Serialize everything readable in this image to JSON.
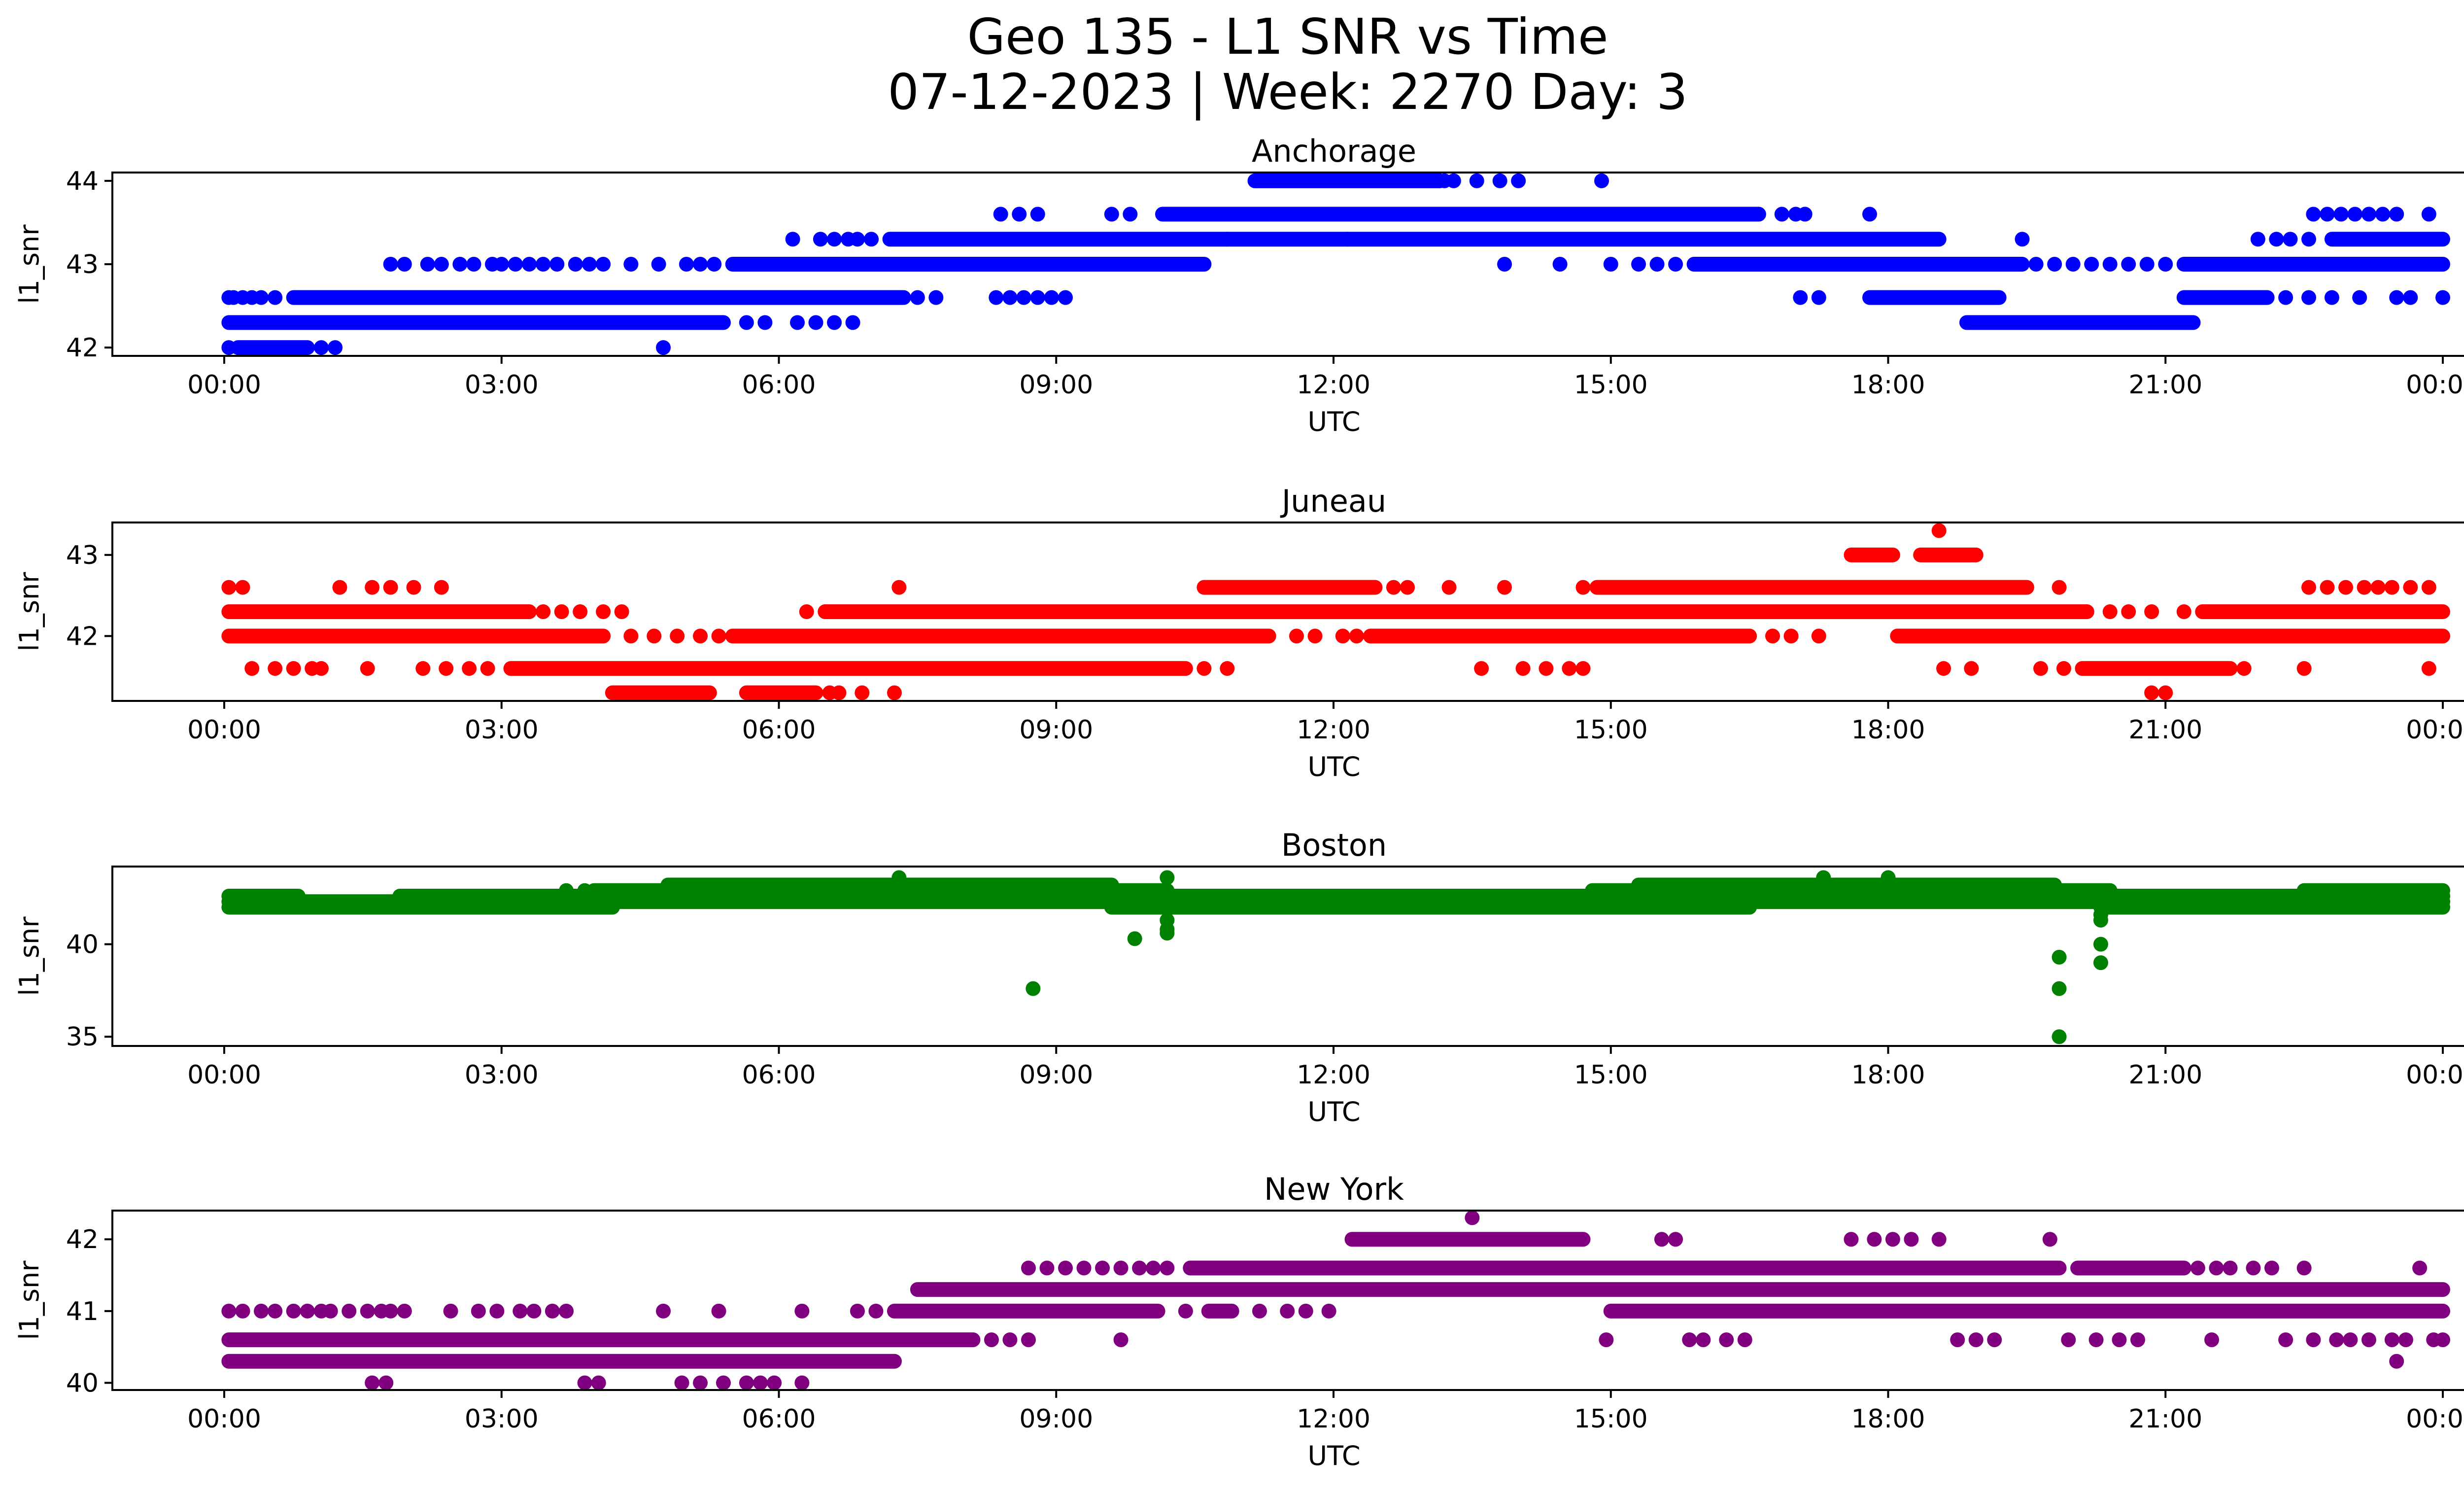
{
  "figure": {
    "title_line1": "Geo 135 - L1 SNR vs Time",
    "title_line2": "07-12-2023 | Week: 2270 Day: 3"
  },
  "chart_data": [
    {
      "type": "scatter",
      "title": "Anchorage",
      "xlabel": "UTC",
      "ylabel": "l1_snr",
      "color": "#0000ff",
      "x_unit": "hours UTC (0–24)",
      "xticks": [
        "00:00",
        "03:00",
        "06:00",
        "09:00",
        "12:00",
        "15:00",
        "18:00",
        "21:00",
        "00:00"
      ],
      "yticks": [
        42,
        43,
        44
      ],
      "ylim": [
        41.9,
        44.1
      ],
      "bands": [
        {
          "y": 44.0,
          "ranges": [
            [
              11.15,
              13.15
            ]
          ],
          "points": [
            13.2,
            13.3,
            13.55,
            13.8,
            14.0,
            14.9
          ]
        },
        {
          "y": 43.6,
          "ranges": [
            [
              10.15,
              16.6
            ]
          ],
          "points": [
            8.4,
            8.6,
            8.8,
            9.6,
            9.8,
            16.85,
            17.0,
            17.1,
            17.8,
            22.6,
            22.75,
            22.9,
            23.05,
            23.2,
            23.35,
            23.5,
            23.85
          ]
        },
        {
          "y": 43.3,
          "ranges": [
            [
              7.2,
              18.55
            ],
            [
              22.8,
              24.0
            ]
          ],
          "points": [
            6.15,
            6.45,
            6.6,
            6.75,
            6.85,
            7.0,
            10.85,
            12.15,
            19.45,
            22.0,
            22.2,
            22.35,
            22.55
          ]
        },
        {
          "y": 43.0,
          "ranges": [
            [
              5.5,
              10.6
            ],
            [
              15.9,
              19.45
            ],
            [
              21.2,
              24.0
            ]
          ],
          "points": [
            1.8,
            1.95,
            2.2,
            2.35,
            2.55,
            2.7,
            2.9,
            3.0,
            3.15,
            3.3,
            3.45,
            3.6,
            3.8,
            3.95,
            4.1,
            4.4,
            4.7,
            5.0,
            5.15,
            5.3,
            13.85,
            14.45,
            15.0,
            15.3,
            15.5,
            15.7,
            19.6,
            19.8,
            20.0,
            20.2,
            20.4,
            20.6,
            20.8,
            21.0
          ]
        },
        {
          "y": 42.6,
          "ranges": [
            [
              0.75,
              7.35
            ],
            [
              17.8,
              19.2
            ],
            [
              21.2,
              22.1
            ]
          ],
          "points": [
            0.05,
            0.1,
            0.2,
            0.3,
            0.4,
            0.55,
            7.5,
            7.7,
            8.35,
            8.5,
            8.65,
            8.8,
            8.95,
            9.1,
            17.05,
            17.25,
            22.3,
            22.55,
            22.8,
            23.1,
            23.5,
            23.65,
            24.0
          ]
        },
        {
          "y": 42.3,
          "ranges": [
            [
              0.05,
              5.4
            ],
            [
              18.85,
              21.3
            ]
          ],
          "points": [
            5.65,
            5.85,
            6.2,
            6.4,
            6.6,
            6.8
          ]
        },
        {
          "y": 42.0,
          "ranges": [
            [
              0.15,
              0.9
            ]
          ],
          "points": [
            0.05,
            1.05,
            1.2,
            4.75
          ]
        }
      ]
    },
    {
      "type": "scatter",
      "title": "Juneau",
      "xlabel": "UTC",
      "ylabel": "l1_snr",
      "color": "#ff0000",
      "x_unit": "hours UTC (0–24)",
      "xticks": [
        "00:00",
        "03:00",
        "06:00",
        "09:00",
        "12:00",
        "15:00",
        "18:00",
        "21:00",
        "00:00"
      ],
      "yticks": [
        43,
        42
      ],
      "ylim": [
        41.2,
        43.4
      ],
      "bands": [
        {
          "y": 43.3,
          "ranges": [],
          "points": [
            18.55
          ]
        },
        {
          "y": 43.0,
          "ranges": [
            [
              17.6,
              18.05
            ],
            [
              18.35,
              18.95
            ]
          ],
          "points": []
        },
        {
          "y": 42.6,
          "ranges": [
            [
              10.6,
              12.45
            ],
            [
              14.85,
              19.5
            ]
          ],
          "points": [
            0.05,
            0.2,
            1.25,
            1.6,
            1.8,
            2.05,
            2.35,
            7.3,
            12.65,
            12.8,
            13.25,
            13.85,
            14.7,
            19.85,
            22.55,
            22.75,
            22.95,
            23.15,
            23.3,
            23.45,
            23.65,
            23.85
          ]
        },
        {
          "y": 42.3,
          "ranges": [
            [
              0.05,
              3.3
            ],
            [
              6.5,
              20.15
            ],
            [
              21.4,
              24.0
            ]
          ],
          "points": [
            3.45,
            3.65,
            3.85,
            4.1,
            4.3,
            6.3,
            20.4,
            20.6,
            20.85,
            21.2
          ]
        },
        {
          "y": 42.0,
          "ranges": [
            [
              0.05,
              4.1
            ],
            [
              5.5,
              11.3
            ],
            [
              12.4,
              16.5
            ],
            [
              18.1,
              24.0
            ]
          ],
          "points": [
            4.4,
            4.65,
            4.9,
            5.15,
            5.35,
            11.6,
            11.8,
            12.1,
            12.25,
            16.75,
            16.95,
            17.25
          ]
        },
        {
          "y": 41.6,
          "ranges": [
            [
              3.1,
              10.4
            ],
            [
              20.1,
              21.7
            ]
          ],
          "points": [
            0.3,
            0.55,
            0.75,
            0.95,
            1.05,
            1.55,
            2.15,
            2.4,
            2.65,
            2.85,
            10.6,
            10.85,
            13.6,
            14.05,
            14.3,
            14.55,
            14.7,
            18.6,
            18.9,
            19.65,
            19.9,
            21.85,
            22.5,
            23.85
          ]
        },
        {
          "y": 41.3,
          "ranges": [
            [
              4.2,
              5.25
            ],
            [
              5.65,
              6.4
            ]
          ],
          "points": [
            6.55,
            6.65,
            6.9,
            7.25,
            20.85,
            21.0
          ]
        }
      ]
    },
    {
      "type": "scatter",
      "title": "Boston",
      "xlabel": "UTC",
      "ylabel": "l1_snr",
      "color": "#008000",
      "x_unit": "hours UTC (0–24)",
      "xticks": [
        "00:00",
        "03:00",
        "06:00",
        "09:00",
        "12:00",
        "15:00",
        "18:00",
        "21:00",
        "00:00"
      ],
      "yticks": [
        40,
        35
      ],
      "ylim": [
        34.5,
        44.2
      ],
      "bands": [
        {
          "y": 43.2,
          "ranges": [
            [
              4.8,
              9.6
            ],
            [
              15.3,
              19.8
            ]
          ],
          "points": [
            7.4,
            7.8,
            17.2,
            18.0
          ]
        },
        {
          "y": 42.9,
          "ranges": [
            [
              4.0,
              10.2
            ],
            [
              14.8,
              20.4
            ],
            [
              22.5,
              24.0
            ]
          ],
          "points": [
            3.7,
            3.9
          ]
        },
        {
          "y": 42.6,
          "ranges": [
            [
              0.05,
              0.8
            ],
            [
              1.9,
              24.0
            ]
          ],
          "points": []
        },
        {
          "y": 42.3,
          "ranges": [
            [
              0.05,
              24.0
            ]
          ],
          "points": [
            10.2
          ]
        },
        {
          "y": 42.0,
          "ranges": [
            [
              0.05,
              4.2
            ],
            [
              9.6,
              16.5
            ],
            [
              20.3,
              24.0
            ]
          ],
          "points": [
            10.2
          ]
        },
        {
          "y": 43.6,
          "ranges": [],
          "points": [
            10.2,
            17.3,
            18.0,
            7.3
          ]
        },
        {
          "y": 41.3,
          "ranges": [],
          "points": [
            10.2,
            20.3
          ]
        },
        {
          "y": 41.6,
          "ranges": [],
          "points": [
            20.3
          ]
        },
        {
          "y": 40.8,
          "ranges": [],
          "points": [
            10.2
          ]
        },
        {
          "y": 40.6,
          "ranges": [],
          "points": [
            10.2
          ]
        },
        {
          "y": 40.3,
          "ranges": [],
          "points": [
            9.85
          ]
        },
        {
          "y": 40.0,
          "ranges": [],
          "points": [
            20.3
          ]
        },
        {
          "y": 39.3,
          "ranges": [],
          "points": [
            19.85
          ]
        },
        {
          "y": 39.0,
          "ranges": [],
          "points": [
            20.3
          ]
        },
        {
          "y": 37.6,
          "ranges": [],
          "points": [
            8.75,
            19.85
          ]
        },
        {
          "y": 35.0,
          "ranges": [],
          "points": [
            19.85
          ]
        }
      ]
    },
    {
      "type": "scatter",
      "title": "New York",
      "xlabel": "UTC",
      "ylabel": "l1_snr",
      "color": "#800080",
      "x_unit": "hours UTC (0–24)",
      "xticks": [
        "00:00",
        "03:00",
        "06:00",
        "09:00",
        "12:00",
        "15:00",
        "18:00",
        "21:00",
        "00:00"
      ],
      "yticks": [
        42,
        41,
        40
      ],
      "ylim": [
        39.9,
        42.4
      ],
      "bands": [
        {
          "y": 42.3,
          "ranges": [],
          "points": [
            13.5
          ]
        },
        {
          "y": 42.0,
          "ranges": [
            [
              12.2,
              14.7
            ]
          ],
          "points": [
            15.55,
            15.7,
            17.6,
            17.85,
            18.05,
            18.25,
            18.55,
            19.75
          ]
        },
        {
          "y": 41.6,
          "ranges": [
            [
              10.45,
              19.85
            ],
            [
              20.05,
              21.2
            ]
          ],
          "points": [
            8.7,
            8.9,
            9.1,
            9.3,
            9.5,
            9.7,
            9.9,
            10.05,
            10.2,
            21.35,
            21.55,
            21.7,
            21.95,
            22.15,
            22.5,
            23.75
          ]
        },
        {
          "y": 41.3,
          "ranges": [
            [
              7.5,
              24.0
            ]
          ],
          "points": []
        },
        {
          "y": 41.0,
          "ranges": [
            [
              7.25,
              10.1
            ],
            [
              10.65,
              10.9
            ],
            [
              15.0,
              24.0
            ]
          ],
          "points": [
            0.05,
            0.2,
            0.4,
            0.55,
            0.75,
            0.9,
            1.05,
            1.15,
            1.35,
            1.55,
            1.7,
            1.8,
            1.95,
            2.45,
            2.75,
            2.95,
            3.2,
            3.35,
            3.55,
            3.7,
            4.75,
            5.35,
            6.25,
            6.85,
            7.05,
            10.4,
            11.2,
            11.5,
            11.7,
            11.95
          ]
        },
        {
          "y": 40.6,
          "ranges": [
            [
              0.05,
              8.1
            ]
          ],
          "points": [
            8.3,
            8.5,
            8.7,
            9.7,
            14.95,
            15.85,
            16.0,
            16.25,
            16.45,
            18.75,
            18.95,
            19.15,
            19.95,
            20.25,
            20.5,
            20.7,
            21.5,
            22.3,
            22.6,
            22.85,
            23.0,
            23.2,
            23.45,
            23.6,
            23.9,
            24.0
          ]
        },
        {
          "y": 40.3,
          "ranges": [
            [
              0.05,
              7.25
            ]
          ],
          "points": [
            23.5
          ]
        },
        {
          "y": 40.0,
          "ranges": [],
          "points": [
            1.6,
            1.75,
            3.9,
            4.05,
            4.95,
            5.15,
            5.4,
            5.65,
            5.8,
            5.95,
            6.25
          ]
        }
      ]
    }
  ]
}
